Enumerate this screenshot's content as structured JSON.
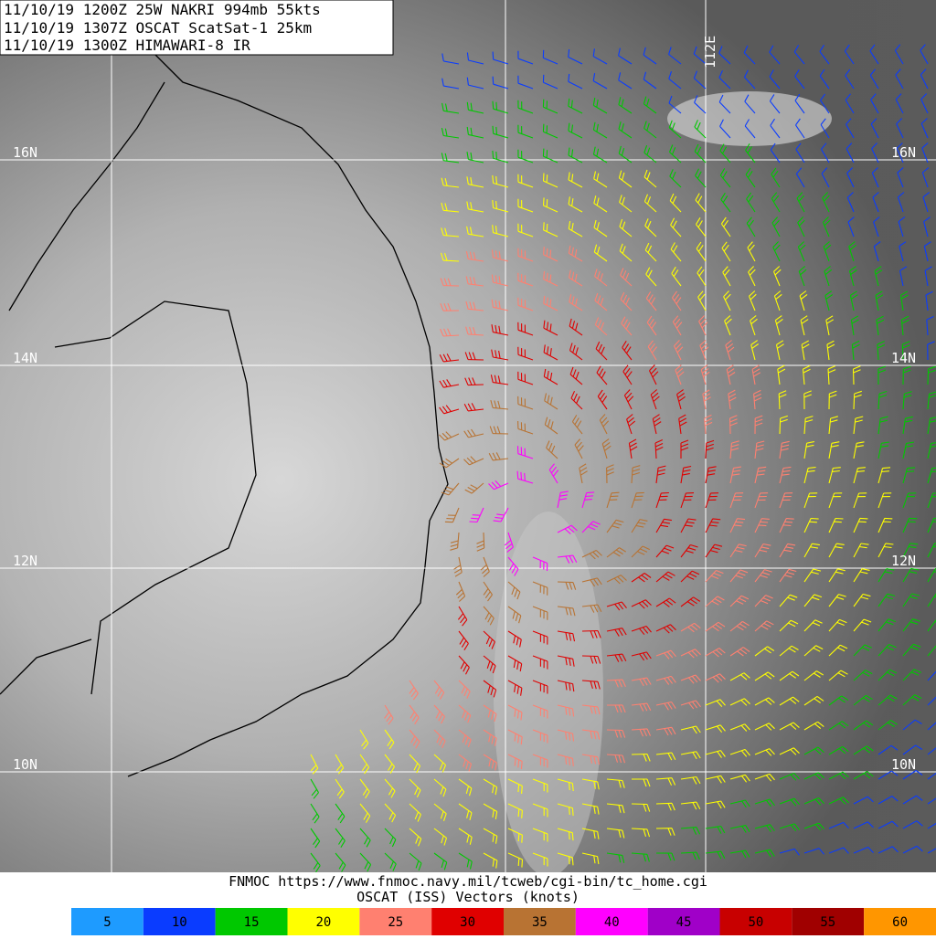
{
  "header": {
    "lines": [
      "11/10/19 1200Z  25W NAKRI 994mb 55kts",
      "11/10/19 1307Z  OSCAT ScatSat-1 25km",
      "11/10/19 1300Z  HIMAWARI-8 IR"
    ]
  },
  "map": {
    "lat_labels": [
      "16N",
      "14N",
      "12N",
      "10N"
    ],
    "lon_label": "112E"
  },
  "footer": {
    "lines": [
      "FNMOC https://www.fnmoc.navy.mil/tcweb/cgi-bin/tc_home.cgi",
      "OSCAT (ISS) Vectors (knots)"
    ]
  },
  "legend": [
    {
      "value": 5,
      "color": "#1e9bff"
    },
    {
      "value": 10,
      "color": "#0a3cff"
    },
    {
      "value": 15,
      "color": "#00c800"
    },
    {
      "value": 20,
      "color": "#ffff00"
    },
    {
      "value": 25,
      "color": "#ff8070"
    },
    {
      "value": 30,
      "color": "#e00000"
    },
    {
      "value": 35,
      "color": "#b87333"
    },
    {
      "value": 40,
      "color": "#ff00ff"
    },
    {
      "value": 45,
      "color": "#a000c8"
    },
    {
      "value": 50,
      "color": "#c80000"
    },
    {
      "value": 55,
      "color": "#a00000"
    },
    {
      "value": 60,
      "color": "#ff9600"
    }
  ]
}
